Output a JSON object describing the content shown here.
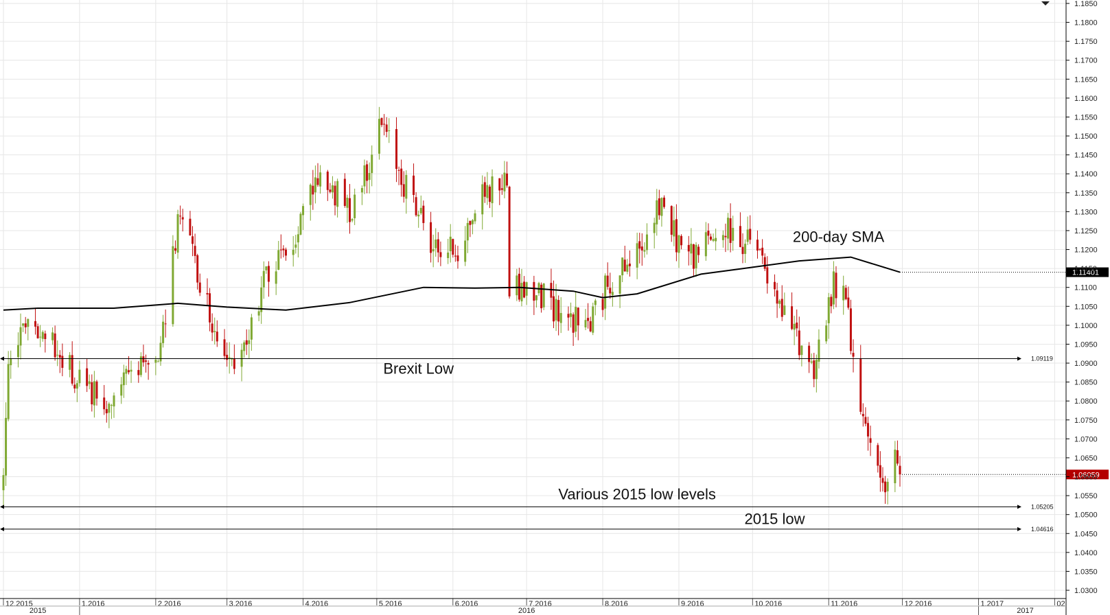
{
  "chart_data": {
    "type": "candlestick",
    "instrument_pair_hint": "",
    "ylim": [
      1.0275,
      1.1865
    ],
    "y_ticks": [
      "1.1850",
      "1.1800",
      "1.1750",
      "1.1700",
      "1.1650",
      "1.1600",
      "1.1550",
      "1.1500",
      "1.1450",
      "1.1400",
      "1.1350",
      "1.1300",
      "1.1250",
      "1.1200",
      "1.1150",
      "1.1100",
      "1.1050",
      "1.1000",
      "1.0950",
      "1.0900",
      "1.0850",
      "1.0800",
      "1.0750",
      "1.0700",
      "1.0650",
      "1.0600",
      "1.0550",
      "1.0500",
      "1.0450",
      "1.0400",
      "1.0350",
      "1.0300"
    ],
    "x_month_labels": [
      {
        "label": "12.2015",
        "date": "2015-12-01"
      },
      {
        "label": "1.2016",
        "date": "2016-01-01"
      },
      {
        "label": "2.2016",
        "date": "2016-02-01"
      },
      {
        "label": "3.2016",
        "date": "2016-03-01"
      },
      {
        "label": "4.2016",
        "date": "2016-04-01"
      },
      {
        "label": "5.2016",
        "date": "2016-05-01"
      },
      {
        "label": "6.2016",
        "date": "2016-06-01"
      },
      {
        "label": "7.2016",
        "date": "2016-07-01"
      },
      {
        "label": "8.2016",
        "date": "2016-08-01"
      },
      {
        "label": "9.2016",
        "date": "2016-09-01"
      },
      {
        "label": "10.2016",
        "date": "2016-10-01"
      },
      {
        "label": "11.2016",
        "date": "2016-11-01"
      },
      {
        "label": "12.2016",
        "date": "2016-12-01"
      },
      {
        "label": "1.2017",
        "date": "2017-01-01"
      },
      {
        "label": "02",
        "date": "2017-02-01"
      }
    ],
    "x_year_labels": [
      {
        "label": "2015",
        "date": "2015-12-15"
      },
      {
        "label": "2016",
        "date": "2016-07-01"
      },
      {
        "label": "2017",
        "date": "2017-01-20"
      }
    ],
    "year_separators": [
      "2016-01-01",
      "2017-01-01"
    ],
    "price_keypoints": [
      {
        "date": "2015-12-01",
        "close": 1.06
      },
      {
        "date": "2015-12-03",
        "close": 1.094
      },
      {
        "date": "2015-12-15",
        "close": 1.1
      },
      {
        "date": "2015-12-31",
        "close": 1.086
      },
      {
        "date": "2016-01-12",
        "close": 1.078
      },
      {
        "date": "2016-01-22",
        "close": 1.087
      },
      {
        "date": "2016-02-02",
        "close": 1.09
      },
      {
        "date": "2016-02-11",
        "close": 1.13
      },
      {
        "date": "2016-02-20",
        "close": 1.11
      },
      {
        "date": "2016-03-01",
        "close": 1.088
      },
      {
        "date": "2016-03-08",
        "close": 1.095
      },
      {
        "date": "2016-03-15",
        "close": 1.11
      },
      {
        "date": "2016-03-24",
        "close": 1.118
      },
      {
        "date": "2016-04-08",
        "close": 1.14
      },
      {
        "date": "2016-04-20",
        "close": 1.13
      },
      {
        "date": "2016-05-03",
        "close": 1.153
      },
      {
        "date": "2016-05-12",
        "close": 1.138
      },
      {
        "date": "2016-05-25",
        "close": 1.12
      },
      {
        "date": "2016-06-03",
        "close": 1.12
      },
      {
        "date": "2016-06-13",
        "close": 1.135
      },
      {
        "date": "2016-06-23",
        "close": 1.138
      },
      {
        "date": "2016-06-24",
        "close": 1.111
      },
      {
        "date": "2016-07-06",
        "close": 1.108
      },
      {
        "date": "2016-07-25",
        "close": 1.099
      },
      {
        "date": "2016-08-05",
        "close": 1.113
      },
      {
        "date": "2016-08-15",
        "close": 1.118
      },
      {
        "date": "2016-08-23",
        "close": 1.132
      },
      {
        "date": "2016-09-05",
        "close": 1.118
      },
      {
        "date": "2016-09-20",
        "close": 1.125
      },
      {
        "date": "2016-10-03",
        "close": 1.12
      },
      {
        "date": "2016-10-11",
        "close": 1.105
      },
      {
        "date": "2016-10-20",
        "close": 1.096
      },
      {
        "date": "2016-10-26",
        "close": 1.089
      },
      {
        "date": "2016-11-03",
        "close": 1.11
      },
      {
        "date": "2016-11-09",
        "close": 1.105
      },
      {
        "date": "2016-11-10",
        "close": 1.091
      },
      {
        "date": "2016-11-15",
        "close": 1.078
      },
      {
        "date": "2016-11-20",
        "close": 1.06
      },
      {
        "date": "2016-11-24",
        "close": 1.056
      },
      {
        "date": "2016-11-28",
        "close": 1.064
      },
      {
        "date": "2016-11-30",
        "close": 1.0606
      }
    ],
    "series": [
      {
        "name": "200-day SMA",
        "color": "#000000",
        "points": [
          {
            "date": "2015-12-01",
            "value": 1.104
          },
          {
            "date": "2015-12-15",
            "value": 1.1045
          },
          {
            "date": "2016-01-15",
            "value": 1.1045
          },
          {
            "date": "2016-02-10",
            "value": 1.1058
          },
          {
            "date": "2016-03-01",
            "value": 1.1048
          },
          {
            "date": "2016-03-25",
            "value": 1.104
          },
          {
            "date": "2016-04-20",
            "value": 1.106
          },
          {
            "date": "2016-05-20",
            "value": 1.11
          },
          {
            "date": "2016-06-10",
            "value": 1.1098
          },
          {
            "date": "2016-06-28",
            "value": 1.11
          },
          {
            "date": "2016-07-20",
            "value": 1.109
          },
          {
            "date": "2016-08-01",
            "value": 1.1073
          },
          {
            "date": "2016-08-15",
            "value": 1.1083
          },
          {
            "date": "2016-09-10",
            "value": 1.1135
          },
          {
            "date": "2016-09-25",
            "value": 1.1148
          },
          {
            "date": "2016-10-20",
            "value": 1.117
          },
          {
            "date": "2016-11-10",
            "value": 1.118
          },
          {
            "date": "2016-11-20",
            "value": 1.116
          },
          {
            "date": "2016-11-30",
            "value": 1.114
          }
        ]
      }
    ],
    "levels": [
      {
        "name": "brexit",
        "value": 1.09119,
        "label": "1.09119"
      },
      {
        "name": "various-2015-low",
        "value": 1.05205,
        "label": "1.05205"
      },
      {
        "name": "2015-low",
        "value": 1.04616,
        "label": "1.04616"
      }
    ],
    "badges": [
      {
        "name": "sma-price",
        "value": 1.11401,
        "label": "1.11401",
        "color": "#000000"
      },
      {
        "name": "last-price",
        "value": 1.06059,
        "label": "1.06059",
        "color": "#b40000"
      }
    ],
    "annotations": [
      {
        "name": "sma-annotation",
        "text": "200-day SMA",
        "date": "2016-11-05",
        "value": 1.122
      },
      {
        "name": "brexit-annotation",
        "text": "Brexit Low",
        "date": "2016-05-18",
        "value": 1.0872
      },
      {
        "name": "various-2015-annotation",
        "text": "Various 2015 low levels",
        "date": "2016-08-15",
        "value": 1.054
      },
      {
        "name": "2015-low-annotation",
        "text": "2015 low",
        "date": "2016-10-10",
        "value": 1.0475
      }
    ],
    "colors": {
      "up": "#7fa832",
      "down": "#c01010",
      "grid": "#e6e6e6",
      "axis": "#000000"
    },
    "grid": true
  }
}
